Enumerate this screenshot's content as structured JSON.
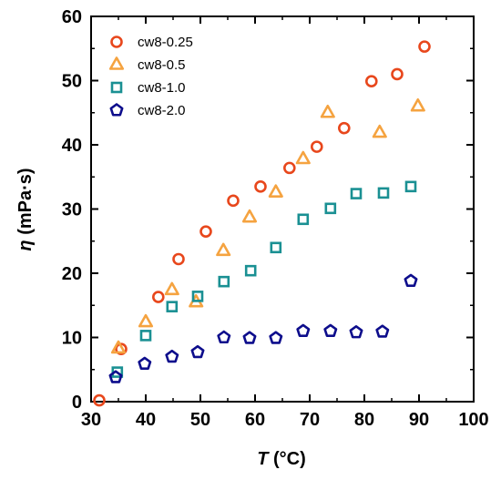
{
  "chart_data": {
    "type": "scatter",
    "xlabel": {
      "symbol": "T",
      "unit": " (°C)"
    },
    "ylabel": {
      "symbol": "η",
      "unit": " (mPa·s)"
    },
    "xlim": [
      30,
      100
    ],
    "ylim": [
      0,
      60
    ],
    "xticks": [
      "30",
      "40",
      "50",
      "60",
      "70",
      "80",
      "90",
      "100"
    ],
    "yticks": [
      "0",
      "10",
      "20",
      "30",
      "40",
      "50",
      "60"
    ],
    "grid": false,
    "legend": "top-left",
    "series": [
      {
        "name": "cw8-0.25",
        "marker": "circle",
        "color": "#e8471c",
        "points": [
          [
            31.5,
            0.2
          ],
          [
            35.5,
            8.2
          ],
          [
            42.3,
            16.3
          ],
          [
            46.0,
            22.2
          ],
          [
            51.0,
            26.5
          ],
          [
            56.0,
            31.3
          ],
          [
            61.0,
            33.5
          ],
          [
            66.3,
            36.4
          ],
          [
            71.3,
            39.7
          ],
          [
            76.3,
            42.6
          ],
          [
            81.3,
            49.9
          ],
          [
            86.0,
            51.0
          ],
          [
            91.0,
            55.3
          ]
        ]
      },
      {
        "name": "cw8-0.5",
        "marker": "triangle",
        "color": "#f5a340",
        "points": [
          [
            35.0,
            8.3
          ],
          [
            40.0,
            12.4
          ],
          [
            44.8,
            17.4
          ],
          [
            49.2,
            15.5
          ],
          [
            54.2,
            23.5
          ],
          [
            59.0,
            28.7
          ],
          [
            63.8,
            32.6
          ],
          [
            68.8,
            37.8
          ],
          [
            73.3,
            45.0
          ],
          [
            82.8,
            41.9
          ],
          [
            89.8,
            46.0
          ]
        ]
      },
      {
        "name": "cw8-1.0",
        "marker": "square",
        "color": "#1a9093",
        "points": [
          [
            34.8,
            4.6
          ],
          [
            40.0,
            10.3
          ],
          [
            44.8,
            14.8
          ],
          [
            49.5,
            16.4
          ],
          [
            54.3,
            18.7
          ],
          [
            59.2,
            20.4
          ],
          [
            63.8,
            24.0
          ],
          [
            68.8,
            28.4
          ],
          [
            73.8,
            30.1
          ],
          [
            78.5,
            32.4
          ],
          [
            83.5,
            32.5
          ],
          [
            88.5,
            33.5
          ]
        ]
      },
      {
        "name": "cw8-2.0",
        "marker": "pentagon",
        "color": "#0d0d8c",
        "points": [
          [
            34.5,
            3.8
          ],
          [
            39.8,
            5.9
          ],
          [
            44.8,
            7.0
          ],
          [
            49.5,
            7.7
          ],
          [
            54.3,
            10.0
          ],
          [
            59.0,
            9.9
          ],
          [
            63.8,
            9.9
          ],
          [
            68.8,
            11.0
          ],
          [
            73.8,
            11.0
          ],
          [
            78.5,
            10.8
          ],
          [
            83.3,
            10.9
          ],
          [
            88.5,
            18.8
          ]
        ]
      }
    ]
  }
}
